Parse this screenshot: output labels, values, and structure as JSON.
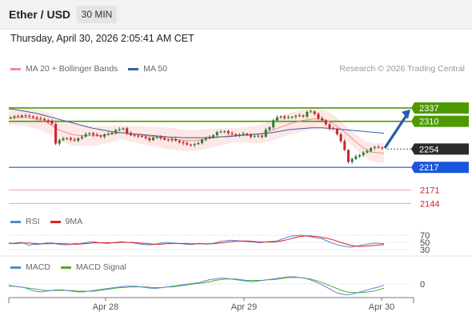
{
  "header": {
    "title": "Ether / USD",
    "interval": "30 MIN"
  },
  "timestamp": "Thursday, April 30, 2026 2:05:41 AM CET",
  "legend": {
    "price": [
      {
        "label": "MA 20 + Bollinger Bands",
        "color": "#f28b8b"
      },
      {
        "label": "MA 50",
        "color": "#3a5f9e"
      }
    ],
    "rsi": [
      {
        "label": "RSI",
        "color": "#5b86d6"
      },
      {
        "label": "9MA",
        "color": "#e02020"
      }
    ],
    "macd": [
      {
        "label": "MACD",
        "color": "#5b86d6"
      },
      {
        "label": "MACD Signal",
        "color": "#4caf30"
      }
    ]
  },
  "credit": "Research © 2026 Trading Central",
  "colors": {
    "resistance": "#4c9a00",
    "support": "#1a56db",
    "current": "#2b2b2b",
    "lower_target": "#e01b2b",
    "bull_candle": "#2e7d32",
    "bear_candle": "#c62828",
    "arrow": "#2a5bab"
  },
  "chart_data": [
    {
      "type": "candlestick",
      "title": "Ether / USD",
      "x_labels": [
        "Apr 28",
        "Apr 29",
        "Apr 30"
      ],
      "ylim": [
        2130,
        2385
      ],
      "levels": [
        {
          "value": 2337,
          "label": "2337",
          "kind": "resistance"
        },
        {
          "value": 2310,
          "label": "2310",
          "kind": "resistance"
        },
        {
          "value": 2254,
          "label": "2254",
          "kind": "current"
        },
        {
          "value": 2217,
          "label": "2217",
          "kind": "support"
        },
        {
          "value": 2171,
          "label": "2171",
          "kind": "lower_target"
        },
        {
          "value": 2144,
          "label": "2144",
          "kind": "lower_target"
        }
      ],
      "series": [
        {
          "name": "Ether / USD",
          "close": [
            2318,
            2320,
            2319,
            2322,
            2321,
            2320,
            2318,
            2316,
            2315,
            2312,
            2310,
            2305,
            2265,
            2272,
            2275,
            2276,
            2273,
            2271,
            2276,
            2279,
            2284,
            2286,
            2283,
            2281,
            2279,
            2283,
            2285,
            2287,
            2292,
            2294,
            2296,
            2286,
            2282,
            2281,
            2280,
            2279,
            2276,
            2272,
            2277,
            2279,
            2276,
            2273,
            2272,
            2274,
            2271,
            2268,
            2266,
            2263,
            2262,
            2264,
            2266,
            2273,
            2276,
            2278,
            2282,
            2288,
            2289,
            2290,
            2286,
            2284,
            2282,
            2283,
            2285,
            2283,
            2279,
            2280,
            2281,
            2279,
            2293,
            2298,
            2312,
            2318,
            2320,
            2317,
            2318,
            2319,
            2321,
            2322,
            2320,
            2329,
            2330,
            2325,
            2316,
            2312,
            2304,
            2296,
            2295,
            2284,
            2270,
            2252,
            2228,
            2234,
            2239,
            2242,
            2247,
            2250,
            2256,
            2258,
            2257,
            2256
          ]
        },
        {
          "name": "MA 20",
          "values": [
            2316,
            2317,
            2318,
            2318,
            2318,
            2317,
            2316,
            2314,
            2312,
            2309,
            2305,
            2300,
            2295,
            2291,
            2288,
            2285,
            2283,
            2282,
            2281,
            2281,
            2281,
            2281,
            2281,
            2282,
            2283,
            2284,
            2285,
            2286,
            2287,
            2286,
            2285,
            2284,
            2283,
            2282,
            2281,
            2280,
            2279,
            2278,
            2277,
            2276,
            2275,
            2274,
            2273,
            2272,
            2271,
            2271,
            2271,
            2272,
            2273,
            2274,
            2276,
            2277,
            2278,
            2279,
            2280,
            2281,
            2282,
            2282,
            2282,
            2282,
            2283,
            2283,
            2284,
            2286,
            2288,
            2291,
            2294,
            2297,
            2300,
            2303,
            2306,
            2308,
            2310,
            2312,
            2313,
            2314,
            2315,
            2315,
            2314,
            2311,
            2307,
            2302,
            2296,
            2290,
            2283,
            2276,
            2269,
            2262,
            2256,
            2251,
            2248,
            2247,
            2246,
            2246
          ]
        },
        {
          "name": "MA 50",
          "values": [
            2335,
            2334,
            2332,
            2330,
            2328,
            2326,
            2323,
            2320,
            2317,
            2314,
            2311,
            2308,
            2305,
            2302,
            2299,
            2296,
            2294,
            2292,
            2290,
            2288,
            2287,
            2286,
            2285,
            2284,
            2283,
            2282,
            2281,
            2280,
            2279,
            2278,
            2278,
            2277,
            2277,
            2277,
            2277,
            2277,
            2278,
            2278,
            2279,
            2279,
            2280,
            2281,
            2282,
            2283,
            2284,
            2285,
            2286,
            2287,
            2289,
            2291,
            2293,
            2294,
            2295,
            2296,
            2297,
            2297,
            2297,
            2296,
            2295,
            2294,
            2293,
            2292,
            2291,
            2290,
            2289,
            2288,
            2287,
            2286
          ]
        },
        {
          "name": "RSI",
          "values": [
            48,
            47,
            49,
            50,
            46,
            42,
            45,
            44,
            46,
            48,
            50,
            47,
            45,
            44,
            43,
            45,
            47,
            46,
            48,
            50,
            52,
            51,
            49,
            48,
            47,
            49,
            50,
            52,
            51,
            50,
            49,
            47,
            45,
            44,
            43,
            44,
            46,
            48,
            50,
            49,
            48,
            47,
            46,
            45,
            44,
            45,
            47,
            46,
            45,
            46,
            48,
            52,
            54,
            55,
            56,
            55,
            54,
            53,
            52,
            51,
            50,
            49,
            51,
            52,
            53,
            54,
            58,
            62,
            66,
            68,
            69,
            70,
            68,
            66,
            64,
            62,
            60,
            55,
            50,
            46,
            42,
            40,
            38,
            37,
            39,
            41,
            43,
            45,
            47,
            48,
            47,
            46
          ]
        },
        {
          "name": "9MA",
          "values": [
            47,
            47,
            47,
            48,
            48,
            48,
            47,
            46,
            46,
            46,
            46,
            47,
            47,
            46,
            46,
            45,
            45,
            45,
            46,
            47,
            48,
            49,
            49,
            49,
            49,
            49,
            49,
            50,
            50,
            50,
            50,
            49,
            48,
            47,
            46,
            45,
            45,
            45,
            46,
            47,
            47,
            47,
            47,
            47,
            46,
            46,
            46,
            46,
            46,
            46,
            47,
            48,
            49,
            51,
            52,
            53,
            54,
            54,
            54,
            53,
            52,
            51,
            51,
            51,
            51,
            52,
            54,
            56,
            59,
            62,
            65,
            67,
            68,
            68,
            67,
            66,
            64,
            62,
            59,
            56,
            52,
            48,
            45,
            42,
            40,
            39,
            39,
            40,
            41,
            42,
            43,
            44
          ]
        },
        {
          "name": "MACD",
          "values": [
            -2,
            -3,
            -4,
            -5,
            -8,
            -10,
            -11,
            -10,
            -9,
            -8,
            -8,
            -9,
            -10,
            -11,
            -11,
            -10,
            -9,
            -8,
            -7,
            -6,
            -5,
            -4,
            -3,
            -3,
            -3,
            -4,
            -5,
            -6,
            -6,
            -5,
            -4,
            -3,
            -2,
            -1,
            0,
            1,
            2,
            4,
            6,
            7,
            8,
            8,
            7,
            6,
            5,
            4,
            3,
            4,
            5,
            6,
            7,
            8,
            9,
            10,
            10,
            9,
            8,
            6,
            3,
            0,
            -4,
            -8,
            -12,
            -14,
            -15,
            -14,
            -12,
            -10,
            -8,
            -6,
            -4,
            -2
          ]
        },
        {
          "name": "MACD Signal",
          "values": [
            -3,
            -3,
            -4,
            -5,
            -6,
            -7,
            -8,
            -9,
            -9,
            -9,
            -9,
            -9,
            -9,
            -10,
            -10,
            -10,
            -10,
            -9,
            -8,
            -7,
            -6,
            -5,
            -5,
            -4,
            -4,
            -4,
            -4,
            -5,
            -5,
            -5,
            -4,
            -4,
            -3,
            -2,
            -1,
            0,
            1,
            2,
            3,
            5,
            6,
            7,
            7,
            7,
            6,
            5,
            5,
            5,
            5,
            6,
            6,
            7,
            8,
            9,
            9,
            9,
            8,
            7,
            5,
            3,
            0,
            -3,
            -6,
            -9,
            -11,
            -12,
            -12,
            -12,
            -11,
            -10,
            -8,
            -6
          ]
        }
      ],
      "rsi_levels": [
        70,
        50,
        30
      ],
      "macd_zero": 0
    }
  ]
}
